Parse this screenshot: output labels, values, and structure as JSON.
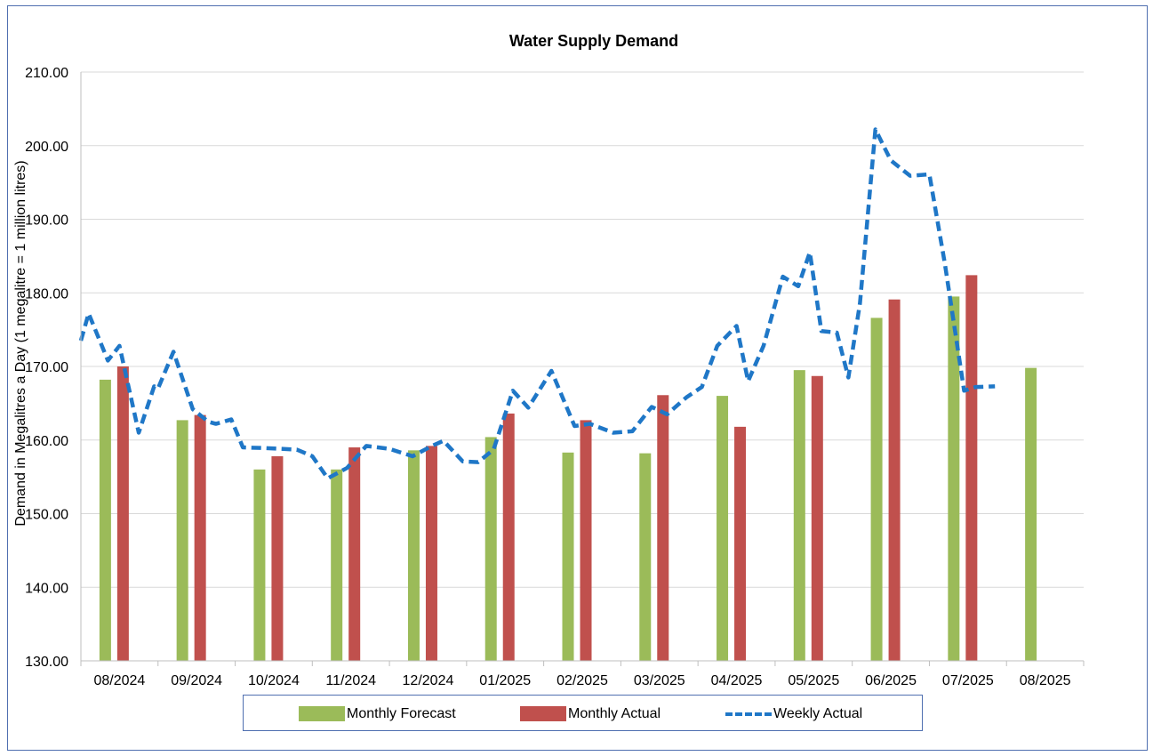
{
  "chart_data": {
    "type": "bar",
    "title": "Water Supply Demand",
    "xlabel": "",
    "ylabel": "Demand in Megalitres a Day (1 megalitre = 1 million litres)",
    "ylim": [
      130,
      210
    ],
    "yticks": [
      "130.00",
      "140.00",
      "150.00",
      "160.00",
      "170.00",
      "180.00",
      "190.00",
      "200.00",
      "210.00"
    ],
    "categories": [
      "08/2024",
      "09/2024",
      "10/2024",
      "11/2024",
      "12/2024",
      "01/2025",
      "02/2025",
      "03/2025",
      "04/2025",
      "05/2025",
      "06/2025",
      "07/2025",
      "08/2025"
    ],
    "grid": true,
    "legend_position": "bottom",
    "series": [
      {
        "name": "Monthly Forecast",
        "type": "bar",
        "color": "#9bbb59",
        "values": [
          168.2,
          162.7,
          156.0,
          156.0,
          158.6,
          160.4,
          158.3,
          158.2,
          166.0,
          169.5,
          176.6,
          179.5,
          169.8
        ]
      },
      {
        "name": "Monthly Actual",
        "type": "bar",
        "color": "#c0504d",
        "values": [
          170.0,
          163.4,
          157.8,
          159.0,
          159.2,
          163.6,
          162.7,
          166.1,
          161.8,
          168.7,
          179.1,
          182.4,
          null
        ]
      },
      {
        "name": "Weekly Actual",
        "type": "line",
        "style": "dashed",
        "color": "#1f77c7",
        "x": [
          0.0,
          0.1,
          0.35,
          0.5,
          0.75,
          0.95,
          1.0,
          1.2,
          1.45,
          1.65,
          1.75,
          1.95,
          2.1,
          2.4,
          2.8,
          3.0,
          3.2,
          3.45,
          3.7,
          4.0,
          4.3,
          4.55,
          4.7,
          4.95,
          5.15,
          5.35,
          5.6,
          5.8,
          6.1,
          6.4,
          6.6,
          6.9,
          7.15,
          7.4,
          7.6,
          7.85,
          8.05,
          8.25,
          8.5,
          8.65,
          8.85,
          9.1,
          9.3,
          9.45,
          9.6,
          9.8,
          9.95,
          10.1,
          10.3,
          10.5,
          10.75,
          11.0,
          11.2,
          11.45,
          11.6,
          11.85
        ],
        "values": [
          173.5,
          177.2,
          170.8,
          172.8,
          161.0,
          167.3,
          167.0,
          172.0,
          164.2,
          162.5,
          162.2,
          162.8,
          159.0,
          158.9,
          158.7,
          157.8,
          154.8,
          156.2,
          159.2,
          158.8,
          157.8,
          159.2,
          159.9,
          157.1,
          157.0,
          158.7,
          166.7,
          164.4,
          169.4,
          161.9,
          162.2,
          161.0,
          161.2,
          164.5,
          163.5,
          165.8,
          167.2,
          172.8,
          175.5,
          168.0,
          172.8,
          182.2,
          180.9,
          185.5,
          174.8,
          174.6,
          168.5,
          178.6,
          202.2,
          198.0,
          195.9,
          196.1,
          184.0,
          166.7,
          167.2,
          167.3
        ]
      }
    ]
  }
}
